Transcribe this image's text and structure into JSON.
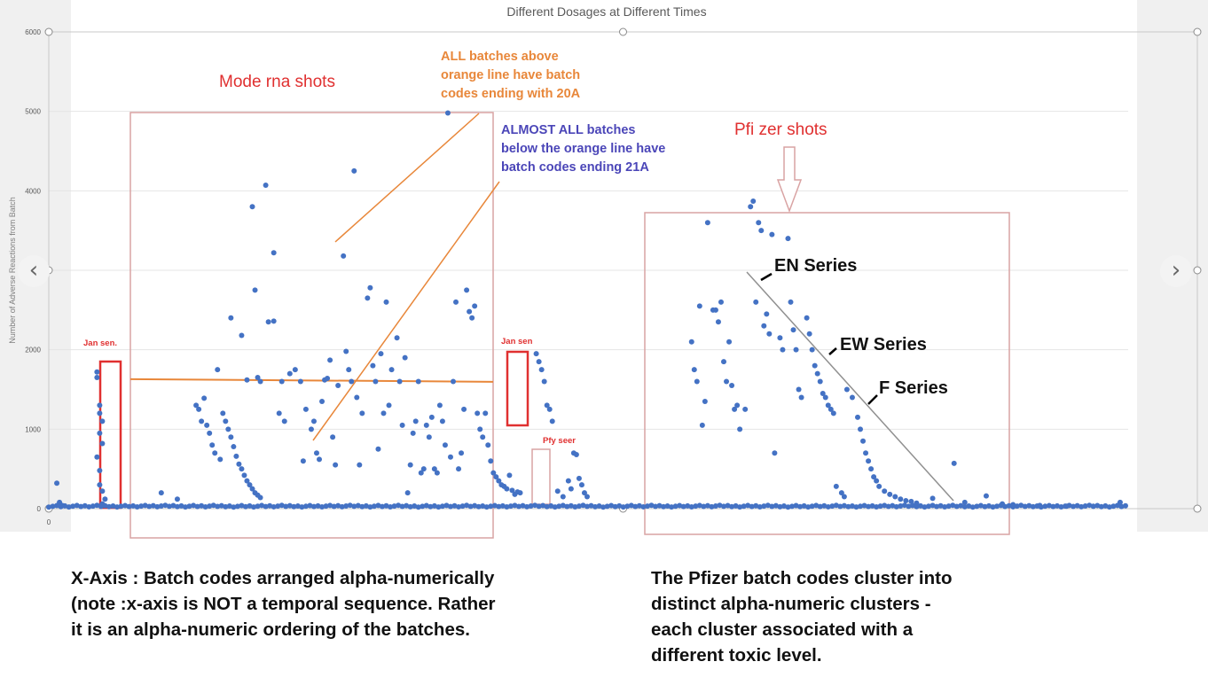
{
  "chart_data": {
    "type": "scatter",
    "title": "Different Dosages at Different Times",
    "ylabel": "Number of Adverse Reactions from Batch",
    "ylim": [
      0,
      6000
    ],
    "yticks": [
      0,
      1000,
      2000,
      3000,
      4000,
      5000,
      6000
    ],
    "xlabel_tick": "0",
    "series": [
      {
        "color": "#4472c4",
        "baseline_value": 20,
        "points": [
          [
            3,
            320
          ],
          [
            4,
            80
          ],
          [
            5,
            40
          ],
          [
            18,
            1720
          ],
          [
            18,
            1650
          ],
          [
            19,
            1300
          ],
          [
            19,
            1200
          ],
          [
            20,
            1100
          ],
          [
            19,
            950
          ],
          [
            20,
            820
          ],
          [
            18,
            650
          ],
          [
            19,
            480
          ],
          [
            19,
            300
          ],
          [
            20,
            220
          ],
          [
            21,
            120
          ],
          [
            20,
            60
          ],
          [
            42,
            200
          ],
          [
            48,
            120
          ],
          [
            55,
            1300
          ],
          [
            56,
            1250
          ],
          [
            58,
            1390
          ],
          [
            57,
            1100
          ],
          [
            59,
            1050
          ],
          [
            60,
            950
          ],
          [
            61,
            800
          ],
          [
            62,
            700
          ],
          [
            63,
            1750
          ],
          [
            64,
            620
          ],
          [
            65,
            1200
          ],
          [
            66,
            1100
          ],
          [
            67,
            1000
          ],
          [
            68,
            900
          ],
          [
            69,
            780
          ],
          [
            70,
            660
          ],
          [
            71,
            560
          ],
          [
            72,
            500
          ],
          [
            73,
            420
          ],
          [
            74,
            350
          ],
          [
            75,
            300
          ],
          [
            76,
            250
          ],
          [
            77,
            200
          ],
          [
            78,
            170
          ],
          [
            79,
            140
          ],
          [
            68,
            2400
          ],
          [
            72,
            2180
          ],
          [
            74,
            1620
          ],
          [
            76,
            3800
          ],
          [
            77,
            2750
          ],
          [
            78,
            1650
          ],
          [
            79,
            1600
          ],
          [
            81,
            4070
          ],
          [
            82,
            2350
          ],
          [
            84,
            3220
          ],
          [
            84,
            2360
          ],
          [
            86,
            1200
          ],
          [
            87,
            1600
          ],
          [
            88,
            1100
          ],
          [
            90,
            1700
          ],
          [
            92,
            1750
          ],
          [
            94,
            1600
          ],
          [
            95,
            600
          ],
          [
            96,
            1250
          ],
          [
            98,
            1000
          ],
          [
            99,
            1100
          ],
          [
            100,
            700
          ],
          [
            101,
            620
          ],
          [
            102,
            1350
          ],
          [
            103,
            1620
          ],
          [
            104,
            1640
          ],
          [
            105,
            1870
          ],
          [
            106,
            900
          ],
          [
            107,
            550
          ],
          [
            108,
            1550
          ],
          [
            110,
            3180
          ],
          [
            111,
            1980
          ],
          [
            112,
            1750
          ],
          [
            114,
            4250
          ],
          [
            113,
            1600
          ],
          [
            115,
            1400
          ],
          [
            116,
            550
          ],
          [
            117,
            1200
          ],
          [
            119,
            2650
          ],
          [
            120,
            2780
          ],
          [
            121,
            1800
          ],
          [
            122,
            1600
          ],
          [
            123,
            750
          ],
          [
            124,
            1950
          ],
          [
            125,
            1200
          ],
          [
            126,
            2600
          ],
          [
            127,
            1300
          ],
          [
            128,
            1750
          ],
          [
            130,
            2150
          ],
          [
            131,
            1600
          ],
          [
            132,
            1050
          ],
          [
            133,
            1900
          ],
          [
            134,
            200
          ],
          [
            135,
            550
          ],
          [
            136,
            950
          ],
          [
            137,
            1100
          ],
          [
            138,
            1600
          ],
          [
            139,
            450
          ],
          [
            140,
            500
          ],
          [
            141,
            1050
          ],
          [
            142,
            900
          ],
          [
            143,
            1150
          ],
          [
            144,
            500
          ],
          [
            145,
            450
          ],
          [
            146,
            1300
          ],
          [
            147,
            1100
          ],
          [
            148,
            800
          ],
          [
            149,
            4980
          ],
          [
            150,
            650
          ],
          [
            151,
            1600
          ],
          [
            152,
            2600
          ],
          [
            153,
            500
          ],
          [
            154,
            700
          ],
          [
            155,
            1250
          ],
          [
            156,
            2750
          ],
          [
            157,
            2480
          ],
          [
            158,
            2400
          ],
          [
            159,
            2550
          ],
          [
            160,
            1200
          ],
          [
            161,
            1000
          ],
          [
            162,
            900
          ],
          [
            163,
            1200
          ],
          [
            164,
            800
          ],
          [
            165,
            600
          ],
          [
            166,
            450
          ],
          [
            167,
            400
          ],
          [
            168,
            350
          ],
          [
            169,
            300
          ],
          [
            170,
            280
          ],
          [
            171,
            250
          ],
          [
            172,
            420
          ],
          [
            173,
            230
          ],
          [
            174,
            180
          ],
          [
            175,
            210
          ],
          [
            176,
            200
          ],
          [
            182,
            1950
          ],
          [
            183,
            1850
          ],
          [
            184,
            1750
          ],
          [
            185,
            1600
          ],
          [
            186,
            1300
          ],
          [
            187,
            1250
          ],
          [
            188,
            1100
          ],
          [
            190,
            220
          ],
          [
            192,
            150
          ],
          [
            194,
            350
          ],
          [
            195,
            250
          ],
          [
            196,
            700
          ],
          [
            197,
            680
          ],
          [
            198,
            380
          ],
          [
            199,
            300
          ],
          [
            200,
            200
          ],
          [
            201,
            150
          ],
          [
            240,
            2100
          ],
          [
            241,
            1750
          ],
          [
            242,
            1600
          ],
          [
            243,
            2550
          ],
          [
            244,
            1050
          ],
          [
            245,
            1350
          ],
          [
            246,
            3600
          ],
          [
            248,
            2500
          ],
          [
            249,
            2500
          ],
          [
            250,
            2350
          ],
          [
            251,
            2600
          ],
          [
            252,
            1850
          ],
          [
            253,
            1600
          ],
          [
            254,
            2100
          ],
          [
            255,
            1550
          ],
          [
            256,
            1250
          ],
          [
            257,
            1300
          ],
          [
            258,
            1000
          ],
          [
            260,
            1250
          ],
          [
            262,
            3800
          ],
          [
            263,
            3870
          ],
          [
            264,
            2600
          ],
          [
            265,
            3600
          ],
          [
            266,
            3500
          ],
          [
            267,
            2300
          ],
          [
            268,
            2450
          ],
          [
            269,
            2200
          ],
          [
            270,
            3450
          ],
          [
            271,
            700
          ],
          [
            273,
            2150
          ],
          [
            274,
            2000
          ],
          [
            276,
            3400
          ],
          [
            277,
            2600
          ],
          [
            278,
            2250
          ],
          [
            279,
            2000
          ],
          [
            280,
            1500
          ],
          [
            281,
            1400
          ],
          [
            283,
            2400
          ],
          [
            284,
            2200
          ],
          [
            285,
            2000
          ],
          [
            286,
            1800
          ],
          [
            287,
            1700
          ],
          [
            288,
            1600
          ],
          [
            289,
            1450
          ],
          [
            290,
            1400
          ],
          [
            291,
            1300
          ],
          [
            292,
            1250
          ],
          [
            293,
            1200
          ],
          [
            294,
            280
          ],
          [
            296,
            200
          ],
          [
            297,
            150
          ],
          [
            298,
            1500
          ],
          [
            300,
            1400
          ],
          [
            302,
            1150
          ],
          [
            303,
            1000
          ],
          [
            304,
            850
          ],
          [
            305,
            700
          ],
          [
            306,
            600
          ],
          [
            307,
            500
          ],
          [
            308,
            400
          ],
          [
            309,
            350
          ],
          [
            310,
            280
          ],
          [
            312,
            220
          ],
          [
            314,
            180
          ],
          [
            316,
            150
          ],
          [
            318,
            120
          ],
          [
            320,
            100
          ],
          [
            322,
            90
          ],
          [
            324,
            70
          ],
          [
            330,
            130
          ],
          [
            338,
            570
          ],
          [
            342,
            80
          ],
          [
            350,
            160
          ],
          [
            356,
            60
          ],
          [
            360,
            50
          ],
          [
            370,
            40
          ],
          [
            380,
            30
          ],
          [
            390,
            30
          ],
          [
            400,
            80
          ]
        ]
      }
    ],
    "xlim": [
      0,
      403
    ],
    "annotations": {
      "moderna_box_label": "Mode rna shots",
      "pfizer_box_label": "Pfi zer shots",
      "orange_note": [
        "ALL batches above",
        "orange line have batch",
        "codes ending with 20A"
      ],
      "blue_note": [
        "ALMOST ALL batches",
        "below the orange line have",
        "batch codes ending 21A"
      ],
      "jan_sen_left": "Jan sen.",
      "jan_sen_right": "Jan sen",
      "pfy_seer": "Pfy seer",
      "en_series": "EN Series",
      "ew_series": "EW Series",
      "f_series": "F Series",
      "orange_line_value": 1630
    }
  },
  "bottom_left_text": "X-Axis : Batch codes arranged alpha-numerically\n(note :x-axis is NOT a temporal sequence. Rather\nit is an alpha-numeric ordering of the batches.",
  "bottom_right_text": "The Pfizer batch codes cluster into\ndistinct alpha-numeric clusters -\neach cluster associated with a\ndifferent toxic level.",
  "nav": {
    "prev": "‹",
    "next": "›"
  },
  "colors": {
    "points": "#4472c4",
    "red": "#e03030",
    "orange": "#e8873a",
    "blue_text": "#4b46b8",
    "box_border": "#d9a3a3"
  }
}
